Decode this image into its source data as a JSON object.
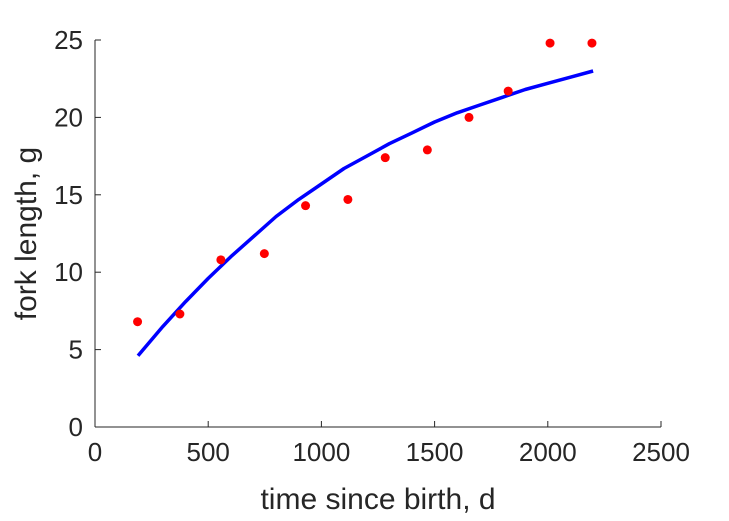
{
  "chart_data": {
    "type": "scatter",
    "xlabel": "time since birth, d",
    "ylabel": "fork length, g",
    "xlim": [
      0,
      2500
    ],
    "ylim": [
      0,
      25
    ],
    "xticks": [
      0,
      500,
      1000,
      1500,
      2000,
      2500
    ],
    "yticks": [
      0,
      5,
      10,
      15,
      20,
      25
    ],
    "grid": false,
    "series": [
      {
        "kind": "scatter",
        "color": "#ff0000",
        "x": [
          188,
          375,
          556,
          748,
          930,
          1117,
          1282,
          1468,
          1652,
          1825,
          2010,
          2195
        ],
        "y": [
          6.8,
          7.3,
          10.8,
          11.2,
          14.3,
          14.7,
          17.4,
          17.9,
          20.0,
          21.7,
          24.8,
          24.8
        ]
      },
      {
        "kind": "line",
        "color": "#0000ff",
        "x": [
          190,
          300,
          400,
          500,
          600,
          700,
          800,
          900,
          1000,
          1100,
          1200,
          1300,
          1400,
          1500,
          1600,
          1700,
          1800,
          1900,
          2000,
          2100,
          2200
        ],
        "y": [
          4.6,
          6.5,
          8.1,
          9.6,
          11.0,
          12.3,
          13.6,
          14.7,
          15.7,
          16.7,
          17.5,
          18.3,
          19.0,
          19.7,
          20.3,
          20.8,
          21.3,
          21.8,
          22.2,
          22.6,
          23.0
        ]
      }
    ]
  }
}
